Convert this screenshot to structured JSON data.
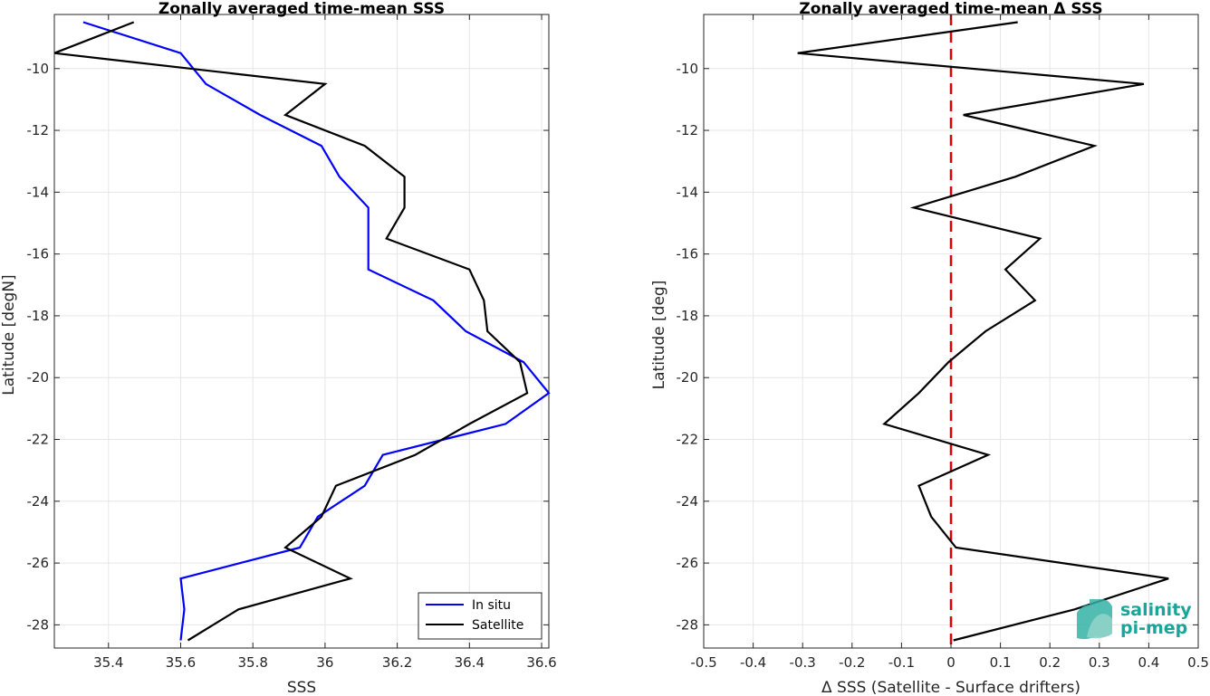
{
  "chart_data": [
    {
      "type": "line",
      "title": "Zonally averaged time-mean SSS",
      "xlabel": "SSS",
      "ylabel": "Latitude [degN]",
      "xlim": [
        35.25,
        36.62
      ],
      "ylim": [
        -28.75,
        -8.25
      ],
      "xticks": [
        35.4,
        35.6,
        35.8,
        36,
        36.2,
        36.4,
        36.6
      ],
      "xtick_labels": [
        "35.4",
        "35.6",
        "35.8",
        "36",
        "36.2",
        "36.4",
        "36.6"
      ],
      "yticks": [
        -10,
        -12,
        -14,
        -16,
        -18,
        -20,
        -22,
        -24,
        -26,
        -28
      ],
      "ytick_labels": [
        "-10",
        "-12",
        "-14",
        "-16",
        "-18",
        "-20",
        "-22",
        "-24",
        "-26",
        "-28"
      ],
      "grid": true,
      "legend": "bottom-right",
      "series": [
        {
          "name": "In situ",
          "color": "#0000ff",
          "points": [
            [
              35.33,
              -8.5
            ],
            [
              35.6,
              -9.5
            ],
            [
              35.67,
              -10.5
            ],
            [
              35.82,
              -11.5
            ],
            [
              35.99,
              -12.5
            ],
            [
              36.04,
              -13.5
            ],
            [
              36.12,
              -14.5
            ],
            [
              36.12,
              -15.5
            ],
            [
              36.12,
              -16.5
            ],
            [
              36.3,
              -17.5
            ],
            [
              36.39,
              -18.5
            ],
            [
              36.55,
              -19.5
            ],
            [
              36.62,
              -20.5
            ],
            [
              36.5,
              -21.5
            ],
            [
              36.16,
              -22.5
            ],
            [
              36.11,
              -23.5
            ],
            [
              35.98,
              -24.5
            ],
            [
              35.93,
              -25.5
            ],
            [
              35.6,
              -26.5
            ],
            [
              35.61,
              -27.5
            ],
            [
              35.6,
              -28.5
            ]
          ]
        },
        {
          "name": "Satellite",
          "color": "#000000",
          "points": [
            [
              35.47,
              -8.5
            ],
            [
              35.25,
              -9.5
            ],
            [
              36.0,
              -10.5
            ],
            [
              35.89,
              -11.5
            ],
            [
              36.11,
              -12.5
            ],
            [
              36.22,
              -13.5
            ],
            [
              36.22,
              -14.5
            ],
            [
              36.17,
              -15.5
            ],
            [
              36.4,
              -16.5
            ],
            [
              36.44,
              -17.5
            ],
            [
              36.45,
              -18.5
            ],
            [
              36.54,
              -19.5
            ],
            [
              36.56,
              -20.5
            ],
            [
              36.4,
              -21.5
            ],
            [
              36.25,
              -22.5
            ],
            [
              36.03,
              -23.5
            ],
            [
              35.99,
              -24.5
            ],
            [
              35.89,
              -25.5
            ],
            [
              36.07,
              -26.5
            ],
            [
              35.76,
              -27.5
            ],
            [
              35.62,
              -28.5
            ]
          ]
        }
      ]
    },
    {
      "type": "line",
      "title": "Zonally averaged time-mean Δ SSS",
      "xlabel": "Δ SSS (Satellite - Surface drifters)",
      "ylabel": "Latitude [deg]",
      "xlim": [
        -0.5,
        0.5
      ],
      "ylim": [
        -28.75,
        -8.25
      ],
      "xticks": [
        -0.5,
        -0.4,
        -0.3,
        -0.2,
        -0.1,
        0,
        0.1,
        0.2,
        0.3,
        0.4,
        0.5
      ],
      "xtick_labels": [
        "-0.5",
        "-0.4",
        "-0.3",
        "-0.2",
        "-0.1",
        "0",
        "0.1",
        "0.2",
        "0.3",
        "0.4",
        "0.5"
      ],
      "yticks": [
        -10,
        -12,
        -14,
        -16,
        -18,
        -20,
        -22,
        -24,
        -26,
        -28
      ],
      "ytick_labels": [
        "-10",
        "-12",
        "-14",
        "-16",
        "-18",
        "-20",
        "-22",
        "-24",
        "-26",
        "-28"
      ],
      "grid": true,
      "reference_line": {
        "x": 0,
        "color": "#e00000",
        "style": "dashed"
      },
      "series": [
        {
          "color": "#000000",
          "points": [
            [
              0.135,
              -8.5
            ],
            [
              -0.31,
              -9.5
            ],
            [
              0.39,
              -10.5
            ],
            [
              0.025,
              -11.5
            ],
            [
              0.29,
              -12.5
            ],
            [
              0.13,
              -13.5
            ],
            [
              -0.075,
              -14.5
            ],
            [
              0.18,
              -15.5
            ],
            [
              0.11,
              -16.5
            ],
            [
              0.17,
              -17.5
            ],
            [
              0.07,
              -18.5
            ],
            [
              -0.005,
              -19.5
            ],
            [
              -0.065,
              -20.5
            ],
            [
              -0.135,
              -21.5
            ],
            [
              0.075,
              -22.5
            ],
            [
              -0.065,
              -23.5
            ],
            [
              -0.04,
              -24.5
            ],
            [
              0.01,
              -25.5
            ],
            [
              0.44,
              -26.5
            ],
            [
              0.25,
              -27.5
            ],
            [
              0.005,
              -28.5
            ]
          ]
        }
      ]
    }
  ],
  "logo": {
    "line1": "salinity",
    "line2": "pi-mep",
    "color": "#1aa59a"
  }
}
